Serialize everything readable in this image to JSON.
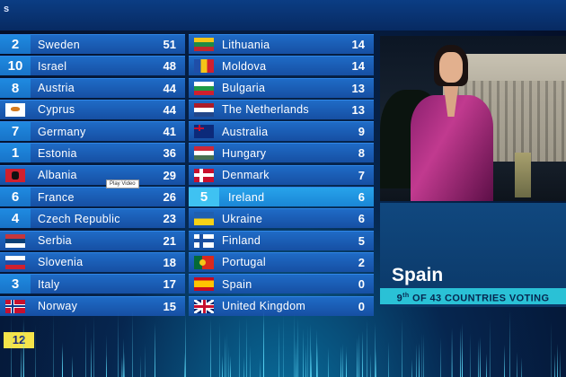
{
  "header": {
    "title": "s"
  },
  "left_column": [
    {
      "points_badge": "2",
      "country": "Sweden",
      "total": "51",
      "flag": "sweden"
    },
    {
      "points_badge": "10",
      "country": "Israel",
      "total": "48",
      "flag": "israel"
    },
    {
      "points_badge": "8",
      "country": "Austria",
      "total": "44",
      "flag": "austria"
    },
    {
      "points_badge": "",
      "country": "Cyprus",
      "total": "44",
      "flag": "cyprus"
    },
    {
      "points_badge": "7",
      "country": "Germany",
      "total": "41",
      "flag": "germany"
    },
    {
      "points_badge": "1",
      "country": "Estonia",
      "total": "36",
      "flag": "estonia"
    },
    {
      "points_badge": "",
      "country": "Albania",
      "total": "29",
      "flag": "albania"
    },
    {
      "points_badge": "6",
      "country": "France",
      "total": "26",
      "flag": "france"
    },
    {
      "points_badge": "4",
      "country": "Czech Republic",
      "total": "23",
      "flag": "czech"
    },
    {
      "points_badge": "",
      "country": "Serbia",
      "total": "21",
      "flag": "serbia"
    },
    {
      "points_badge": "",
      "country": "Slovenia",
      "total": "18",
      "flag": "slovenia"
    },
    {
      "points_badge": "3",
      "country": "Italy",
      "total": "17",
      "flag": "italy"
    },
    {
      "points_badge": "",
      "country": "Norway",
      "total": "15",
      "flag": "norway"
    }
  ],
  "right_column": [
    {
      "points_badge": "",
      "country": "Lithuania",
      "total": "14",
      "flag": "lithuania"
    },
    {
      "points_badge": "",
      "country": "Moldova",
      "total": "14",
      "flag": "moldova"
    },
    {
      "points_badge": "",
      "country": "Bulgaria",
      "total": "13",
      "flag": "bulgaria"
    },
    {
      "points_badge": "",
      "country": "The Netherlands",
      "total": "13",
      "flag": "netherlands"
    },
    {
      "points_badge": "",
      "country": "Australia",
      "total": "9",
      "flag": "australia"
    },
    {
      "points_badge": "",
      "country": "Hungary",
      "total": "8",
      "flag": "hungary"
    },
    {
      "points_badge": "",
      "country": "Denmark",
      "total": "7",
      "flag": "denmark"
    },
    {
      "points_badge": "5",
      "country": "Ireland",
      "total": "6",
      "flag": "ireland",
      "highlight": true
    },
    {
      "points_badge": "",
      "country": "Ukraine",
      "total": "6",
      "flag": "ukraine"
    },
    {
      "points_badge": "",
      "country": "Finland",
      "total": "5",
      "flag": "finland"
    },
    {
      "points_badge": "",
      "country": "Portugal",
      "total": "2",
      "flag": "portugal"
    },
    {
      "points_badge": "",
      "country": "Spain",
      "total": "0",
      "flag": "spain"
    },
    {
      "points_badge": "",
      "country": "United Kingdom",
      "total": "0",
      "flag": "uk"
    }
  ],
  "voting_panel": {
    "country": "Spain",
    "rank_number": "9",
    "rank_suffix": "th",
    "rank_text": " OF 43 COUNTRIES VOTING"
  },
  "pending_points": "12",
  "tooltip": "Play Video",
  "colors": {
    "row": "#1b5cb5",
    "highlight_row": "#1f93df",
    "badge_yellow": "#f5e44a",
    "rank_bar": "#2ac1d6"
  }
}
